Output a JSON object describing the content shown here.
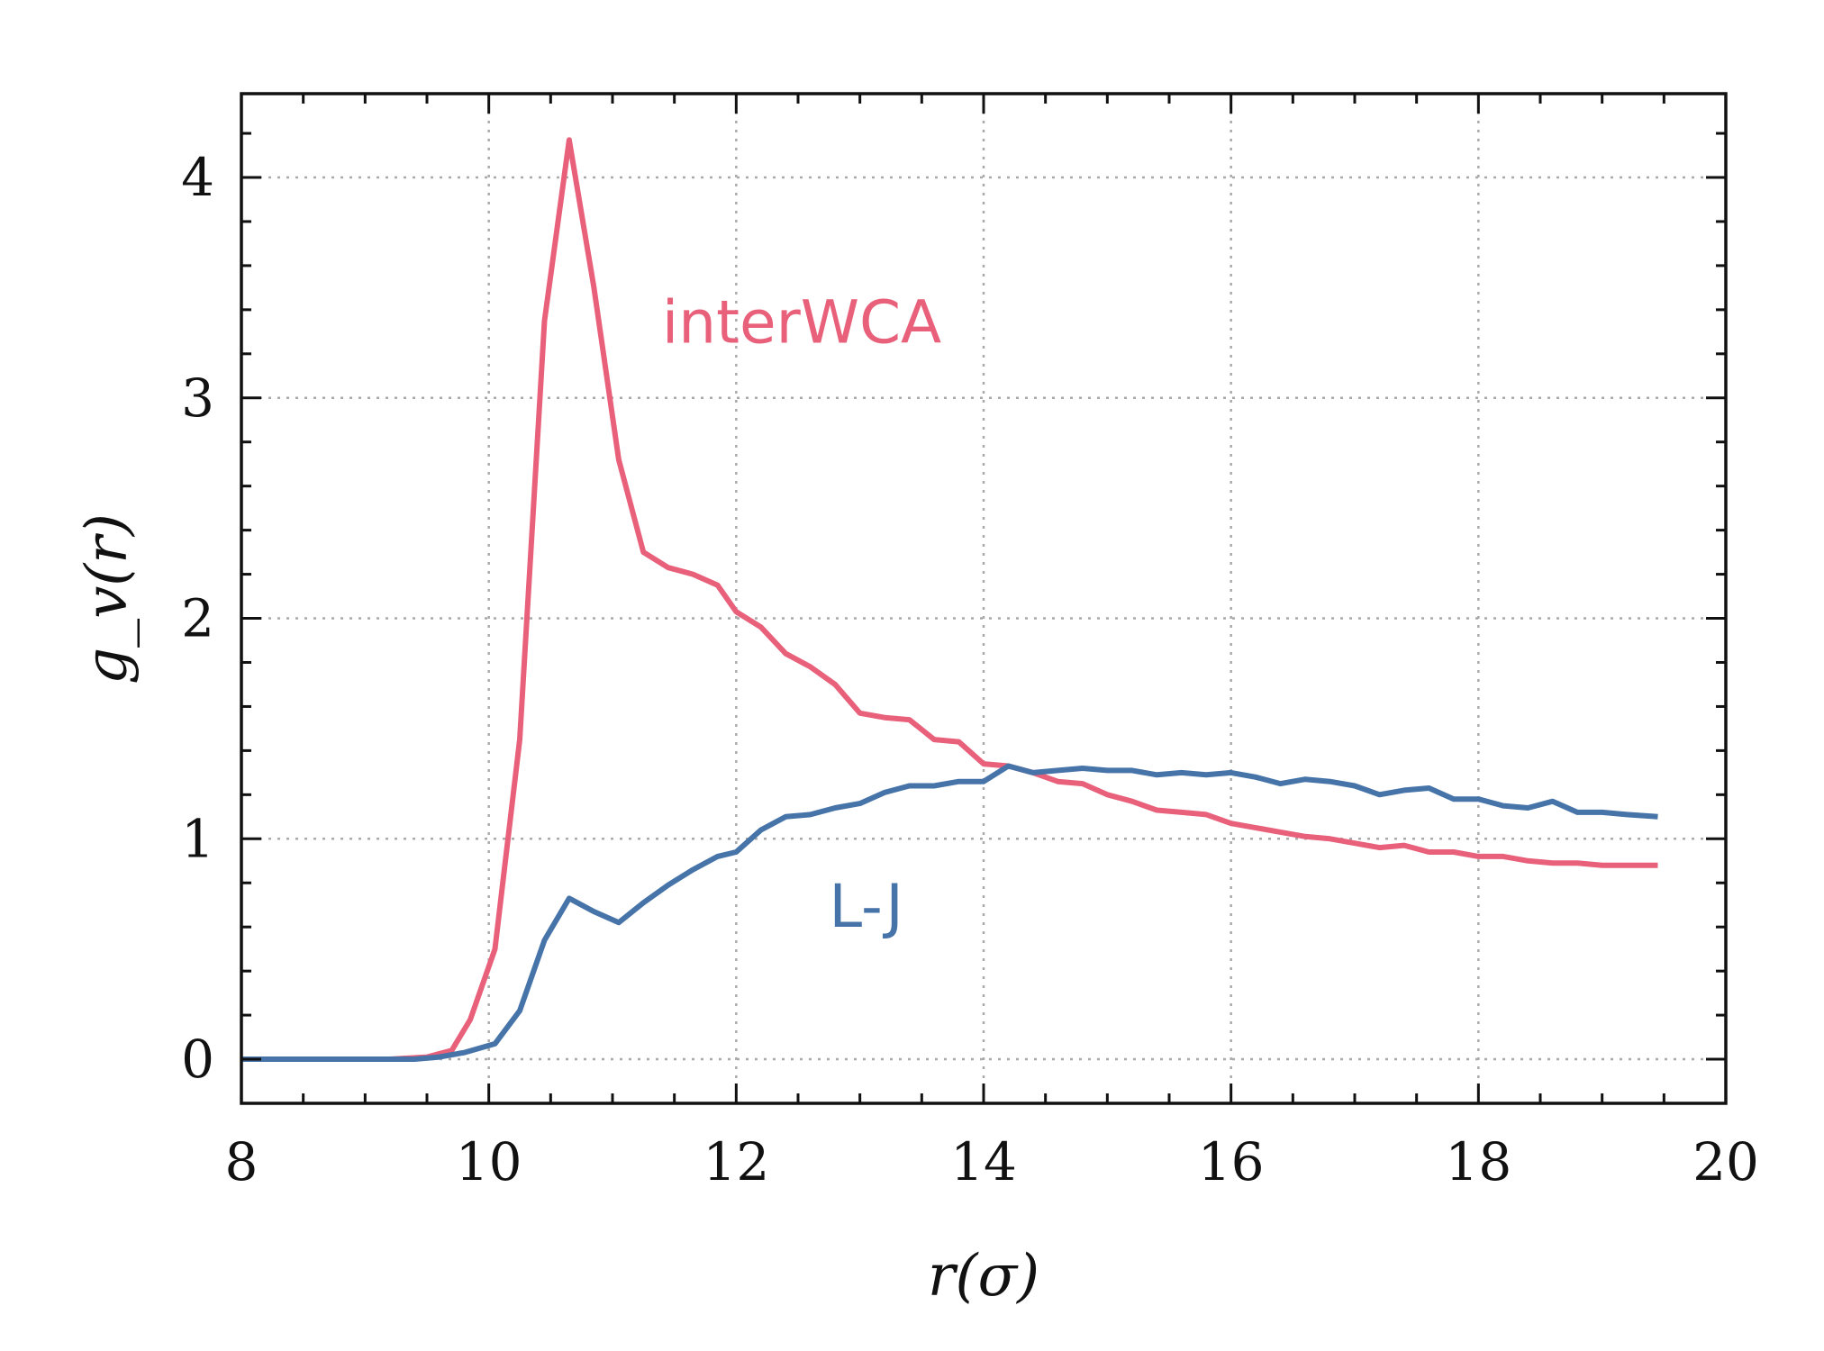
{
  "chart_data": {
    "type": "line",
    "title": "",
    "xlabel": "r(σ)",
    "ylabel": "g_v(r)",
    "xlim": [
      8,
      20
    ],
    "ylim": [
      -0.2,
      4.38
    ],
    "x_ticks": [
      8,
      10,
      12,
      14,
      16,
      18,
      20
    ],
    "y_ticks": [
      0,
      1,
      2,
      3,
      4
    ],
    "grid": true,
    "series": [
      {
        "name": "interWCA",
        "color": "#e8607a",
        "label_anchor": [
          11.4,
          3.25
        ],
        "x": [
          8.0,
          9.2,
          9.5,
          9.7,
          9.85,
          10.05,
          10.25,
          10.45,
          10.65,
          10.85,
          11.05,
          11.25,
          11.45,
          11.65,
          11.85,
          12.0,
          12.2,
          12.4,
          12.6,
          12.8,
          13.0,
          13.2,
          13.4,
          13.6,
          13.8,
          14.0,
          14.2,
          14.4,
          14.6,
          14.8,
          15.0,
          15.2,
          15.4,
          15.6,
          15.8,
          16.0,
          16.2,
          16.4,
          16.6,
          16.8,
          17.0,
          17.2,
          17.4,
          17.6,
          17.8,
          18.0,
          18.2,
          18.4,
          18.6,
          18.8,
          19.0,
          19.2,
          19.45
        ],
        "y": [
          0.0,
          0.0,
          0.01,
          0.04,
          0.18,
          0.5,
          1.45,
          3.35,
          4.17,
          3.5,
          2.72,
          2.3,
          2.23,
          2.2,
          2.15,
          2.03,
          1.96,
          1.84,
          1.78,
          1.7,
          1.57,
          1.55,
          1.54,
          1.45,
          1.44,
          1.34,
          1.33,
          1.3,
          1.26,
          1.25,
          1.2,
          1.17,
          1.13,
          1.12,
          1.11,
          1.07,
          1.05,
          1.03,
          1.01,
          1.0,
          0.98,
          0.96,
          0.97,
          0.94,
          0.94,
          0.92,
          0.92,
          0.9,
          0.89,
          0.89,
          0.88,
          0.88,
          0.88
        ]
      },
      {
        "name": "L-J",
        "color": "#4673a8",
        "label_anchor": [
          12.75,
          0.6
        ],
        "x": [
          8.0,
          9.4,
          9.6,
          9.8,
          10.05,
          10.25,
          10.45,
          10.65,
          10.85,
          11.05,
          11.25,
          11.45,
          11.65,
          11.85,
          12.0,
          12.2,
          12.4,
          12.6,
          12.8,
          13.0,
          13.2,
          13.4,
          13.6,
          13.8,
          14.0,
          14.2,
          14.4,
          14.6,
          14.8,
          15.0,
          15.2,
          15.4,
          15.6,
          15.8,
          16.0,
          16.2,
          16.4,
          16.6,
          16.8,
          17.0,
          17.2,
          17.4,
          17.6,
          17.8,
          18.0,
          18.2,
          18.4,
          18.6,
          18.8,
          19.0,
          19.2,
          19.45
        ],
        "y": [
          0.0,
          0.0,
          0.01,
          0.03,
          0.07,
          0.22,
          0.54,
          0.73,
          0.67,
          0.62,
          0.71,
          0.79,
          0.86,
          0.92,
          0.94,
          1.04,
          1.1,
          1.11,
          1.14,
          1.16,
          1.21,
          1.24,
          1.24,
          1.26,
          1.26,
          1.33,
          1.3,
          1.31,
          1.32,
          1.31,
          1.31,
          1.29,
          1.3,
          1.29,
          1.3,
          1.28,
          1.25,
          1.27,
          1.26,
          1.24,
          1.2,
          1.22,
          1.23,
          1.18,
          1.18,
          1.15,
          1.14,
          1.17,
          1.12,
          1.12,
          1.11,
          1.1
        ]
      }
    ]
  }
}
